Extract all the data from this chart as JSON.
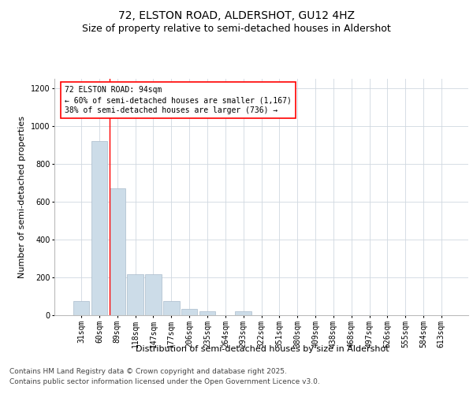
{
  "title_line1": "72, ELSTON ROAD, ALDERSHOT, GU12 4HZ",
  "title_line2": "Size of property relative to semi-detached houses in Aldershot",
  "xlabel": "Distribution of semi-detached houses by size in Aldershot",
  "ylabel": "Number of semi-detached properties",
  "bins": [
    "31sqm",
    "60sqm",
    "89sqm",
    "118sqm",
    "147sqm",
    "177sqm",
    "206sqm",
    "235sqm",
    "264sqm",
    "293sqm",
    "322sqm",
    "351sqm",
    "380sqm",
    "409sqm",
    "438sqm",
    "468sqm",
    "497sqm",
    "526sqm",
    "555sqm",
    "584sqm",
    "613sqm"
  ],
  "values": [
    75,
    920,
    670,
    215,
    215,
    75,
    35,
    20,
    0,
    20,
    0,
    0,
    0,
    0,
    0,
    0,
    0,
    0,
    0,
    0,
    0
  ],
  "bar_color": "#ccdce8",
  "bar_edge_color": "#aabccc",
  "red_line_bin": 2,
  "ylim": [
    0,
    1250
  ],
  "yticks": [
    0,
    200,
    400,
    600,
    800,
    1000,
    1200
  ],
  "annotation_title": "72 ELSTON ROAD: 94sqm",
  "annotation_line1": "← 60% of semi-detached houses are smaller (1,167)",
  "annotation_line2": "38% of semi-detached houses are larger (736) →",
  "footer_line1": "Contains HM Land Registry data © Crown copyright and database right 2025.",
  "footer_line2": "Contains public sector information licensed under the Open Government Licence v3.0.",
  "bg_color": "#ffffff",
  "grid_color": "#d0d8e0",
  "title_fontsize": 10,
  "subtitle_fontsize": 9,
  "axis_label_fontsize": 8,
  "tick_fontsize": 7,
  "annotation_fontsize": 7,
  "footer_fontsize": 6.5
}
